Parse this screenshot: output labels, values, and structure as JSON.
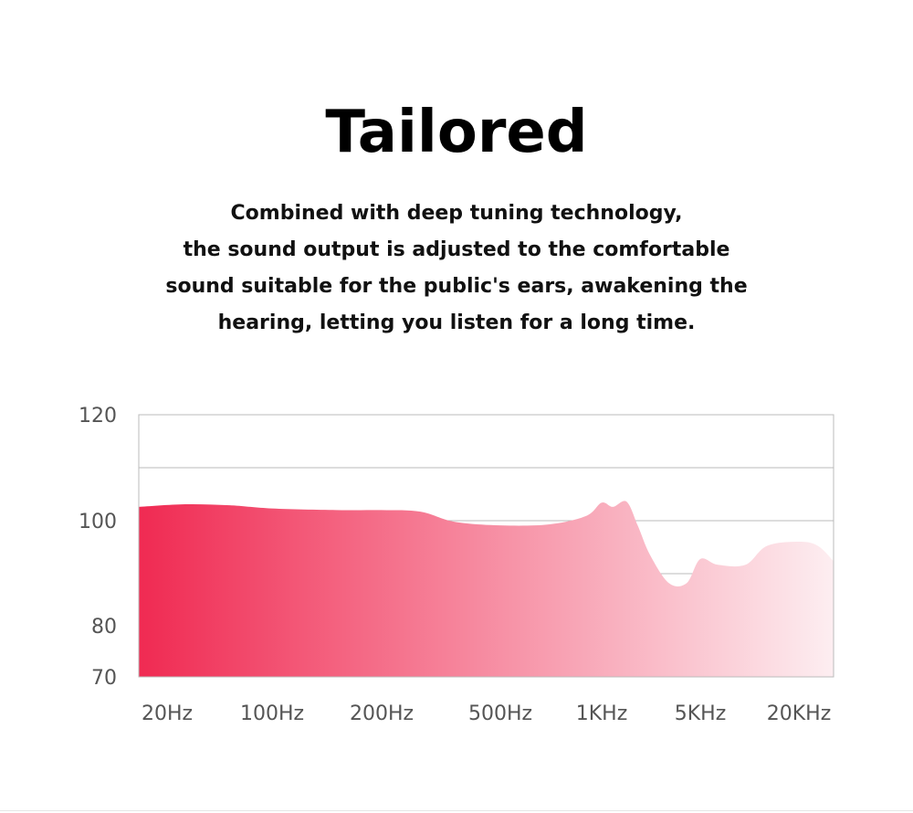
{
  "heading": {
    "title": "Tailored",
    "lines": [
      "Combined with deep tuning technology,",
      "the sound output is adjusted to the comfortable",
      "sound suitable for the public's ears, awakening the",
      "hearing, letting you listen for a long time."
    ]
  },
  "colors": {
    "fill_start": "#f02a52",
    "fill_end": "#fdeef1",
    "grid": "#bbbbbb",
    "axis_text": "#555555"
  },
  "chart_data": {
    "type": "area",
    "title": "",
    "xlabel": "",
    "ylabel": "",
    "ylim": [
      70,
      120
    ],
    "y_ticks": [
      "120",
      "100",
      "80",
      "70"
    ],
    "x_ticks": [
      "20Hz",
      "100Hz",
      "200Hz",
      "500Hz",
      "1KHz",
      "5KHz",
      "20KHz"
    ],
    "grid": "horizontal",
    "series": [
      {
        "x": [
          "20Hz",
          "35Hz",
          "60Hz",
          "100Hz",
          "150Hz",
          "200Hz",
          "270Hz",
          "350Hz",
          "500Hz",
          "700Hz",
          "900Hz",
          "1KHz",
          "1.2KHz",
          "1.5KHz",
          "1.8KHz",
          "2.2KHz",
          "3KHz",
          "4KHz",
          "5KHz",
          "6KHz",
          "8KHz",
          "10KHz",
          "14KHz",
          "17KHz",
          "20KHz"
        ],
        "y": [
          102.6,
          103.1,
          102.9,
          102.3,
          102.0,
          102.0,
          101.7,
          99.8,
          99.1,
          99.3,
          100.9,
          103.4,
          102.6,
          103.6,
          99.1,
          93.5,
          88.1,
          88.1,
          92.7,
          91.6,
          91.6,
          95.2,
          96.0,
          95.2,
          92.3
        ]
      }
    ]
  }
}
